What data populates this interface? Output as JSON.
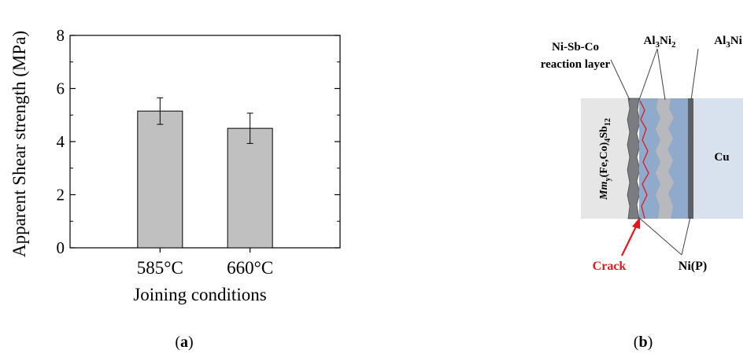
{
  "chart_data": {
    "type": "bar",
    "categories": [
      "585°C",
      "660°C"
    ],
    "values": [
      5.15,
      4.5
    ],
    "errors": [
      0.5,
      0.57
    ],
    "xlabel": "Joining conditions",
    "ylabel": "Apparent Shear strength (MPa)",
    "ylim": [
      0,
      8
    ],
    "yticks": [
      "0",
      "2",
      "4",
      "6",
      "8"
    ],
    "grid": false,
    "bar_color": "#c0c0c0"
  },
  "diagram": {
    "labels": {
      "nisbco_line1": "Ni-Sb-Co",
      "nisbco_line2": "reaction layer",
      "al3ni2": "Al3Ni2",
      "al3ni": "Al3Ni",
      "skutterudite": "Mmy(Fe,Co)4Sb12",
      "cu": "Cu",
      "crack": "Crack",
      "nip": "Ni(P)"
    },
    "colors": {
      "crack": "#e3171b",
      "blue_layer": "#8faacb",
      "cu_region": "#d8e2ee",
      "skutterudite_region": "#e6e6e6",
      "nip_layer": "#5f6064"
    }
  },
  "panels": {
    "a": "a",
    "b": "b"
  }
}
